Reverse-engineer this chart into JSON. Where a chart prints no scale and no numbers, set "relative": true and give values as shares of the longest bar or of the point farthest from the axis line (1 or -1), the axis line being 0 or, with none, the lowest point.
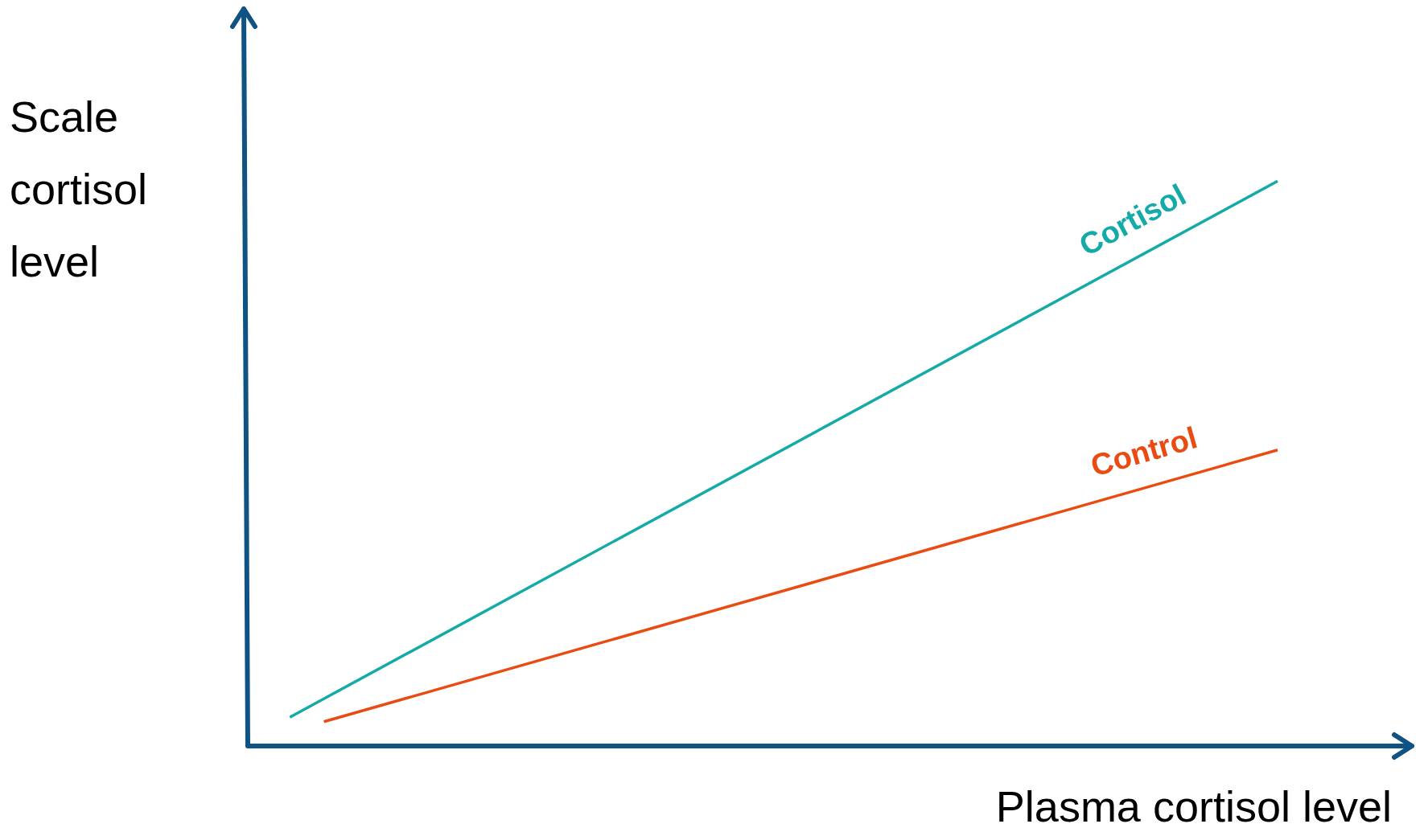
{
  "chart_data": {
    "type": "line",
    "relative": true,
    "xlabel": "Plasma cortisol level",
    "ylabel": "Scale cortisol level",
    "legend": false,
    "marker": "none",
    "line_style": "solid",
    "categories": [
      null,
      null,
      null,
      null,
      null,
      null,
      null,
      null,
      null,
      null,
      null,
      null,
      null,
      null,
      null,
      null,
      null,
      null,
      null,
      null,
      null,
      null,
      null,
      null,
      null,
      null,
      null,
      null,
      null,
      null
    ],
    "series": [
      {
        "name": "Cortisol",
        "color": "#13aaa8",
        "values": [
          0.051,
          null,
          null,
          null,
          null,
          null,
          null,
          null,
          null,
          null,
          null,
          null,
          null,
          null,
          null,
          null,
          null,
          null,
          null,
          null,
          null,
          null,
          null,
          null,
          null,
          null,
          null,
          null,
          null,
          1
        ]
      },
      {
        "name": "Control",
        "color": "#e84c13",
        "values": [
          null,
          0.043,
          null,
          null,
          null,
          null,
          null,
          null,
          null,
          null,
          null,
          null,
          null,
          null,
          null,
          null,
          null,
          null,
          null,
          null,
          null,
          null,
          null,
          null,
          null,
          null,
          null,
          null,
          null,
          0.524
        ]
      }
    ]
  }
}
